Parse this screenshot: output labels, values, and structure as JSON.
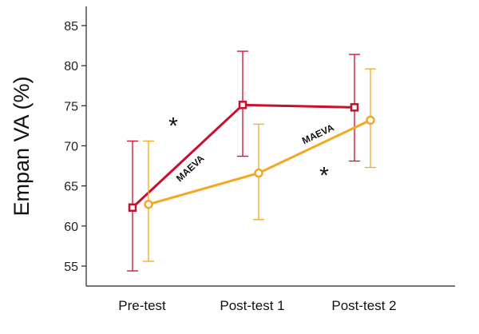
{
  "chart_data": {
    "type": "line",
    "title": "",
    "xlabel": "",
    "ylabel": "Empan VA (%)",
    "categories": [
      "Pre-test",
      "Post-test 1",
      "Post-test 2"
    ],
    "ylim": [
      53,
      87
    ],
    "yticks": [
      55,
      60,
      65,
      70,
      75,
      80,
      85
    ],
    "grid": false,
    "legend": "none",
    "series": [
      {
        "color": "#c8102e",
        "marker": "square",
        "values": [
          62.3,
          75.1,
          74.8
        ],
        "error_low": [
          54.4,
          68.7,
          68.1
        ],
        "error_high": [
          70.6,
          81.8,
          81.4
        ]
      },
      {
        "color": "#f5a623",
        "marker": "circle",
        "values": [
          62.7,
          66.6,
          73.2
        ],
        "error_low": [
          55.6,
          60.8,
          67.3
        ],
        "error_high": [
          70.6,
          72.7,
          79.6
        ]
      }
    ],
    "annotations": [
      {
        "text": "MAEVA",
        "series": 0,
        "between": [
          0,
          1
        ]
      },
      {
        "text": "MAEVA",
        "series": 1,
        "between": [
          1,
          2
        ]
      },
      {
        "text": "*",
        "series": 0,
        "between": [
          0,
          1
        ]
      },
      {
        "text": "*",
        "series": 1,
        "between": [
          1,
          2
        ]
      }
    ]
  }
}
